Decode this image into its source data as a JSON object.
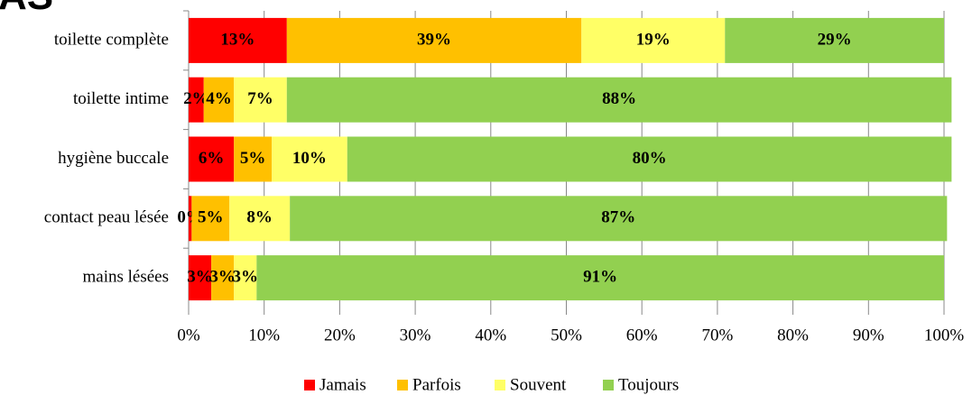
{
  "chart_data": {
    "type": "stacked_bar_horizontal",
    "title": "AS",
    "categories": [
      "toilette complète",
      "toilette intime",
      "hygiène buccale",
      "contact peau lésée",
      "mains lésées"
    ],
    "series": [
      {
        "name": "Jamais",
        "color": "#ff0000",
        "values": [
          13,
          2,
          6,
          0.4,
          3
        ],
        "value_labels": [
          "13%",
          "2%",
          "6%",
          "0%",
          "3%"
        ]
      },
      {
        "name": "Parfois",
        "color": "#ffc000",
        "values": [
          39,
          4,
          5,
          5,
          3
        ],
        "value_labels": [
          "39%",
          "4%",
          "5%",
          "5%",
          "3%"
        ]
      },
      {
        "name": "Souvent",
        "color": "#ffff66",
        "values": [
          19,
          7,
          10,
          8,
          3
        ],
        "value_labels": [
          "19%",
          "7%",
          "10%",
          "8%",
          "3%"
        ]
      },
      {
        "name": "Toujours",
        "color": "#92d050",
        "values": [
          29,
          88,
          80,
          87,
          91
        ],
        "value_labels": [
          "29%",
          "88%",
          "80%",
          "87%",
          "91%"
        ]
      }
    ],
    "xlim": [
      0,
      100
    ],
    "xticks": [
      {
        "value": 0,
        "label": "0%"
      },
      {
        "value": 10,
        "label": "10%"
      },
      {
        "value": 20,
        "label": "20%"
      },
      {
        "value": 30,
        "label": "30%"
      },
      {
        "value": 40,
        "label": "40%"
      },
      {
        "value": 50,
        "label": "50%"
      },
      {
        "value": 60,
        "label": "60%"
      },
      {
        "value": 70,
        "label": "70%"
      },
      {
        "value": 80,
        "label": "80%"
      },
      {
        "value": 90,
        "label": "90%"
      },
      {
        "value": 100,
        "label": "100%"
      }
    ],
    "grid": true,
    "legend": "bottom"
  }
}
